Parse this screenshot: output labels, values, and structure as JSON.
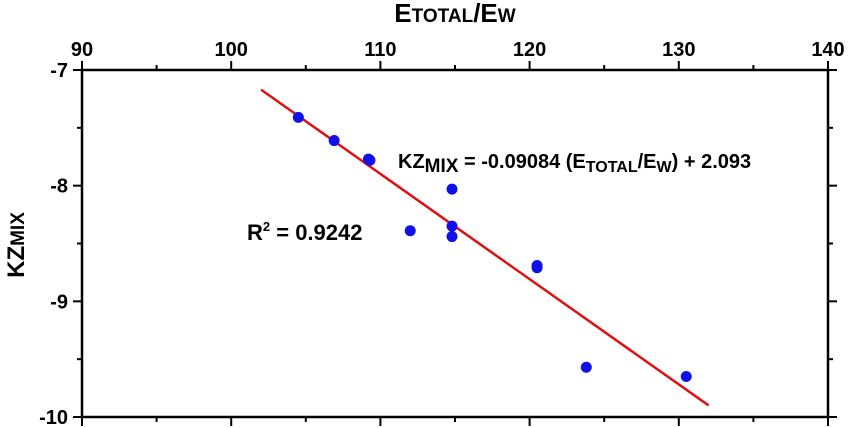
{
  "chart_data": {
    "type": "scatter",
    "xlabel": {
      "main": "E",
      "sub1": "TOTAL",
      "sep": "/E",
      "sub2": "W"
    },
    "ylabel": {
      "main": "KZ",
      "sub": "MIX"
    },
    "xlim": [
      90,
      140
    ],
    "ylim": [
      -10,
      -7
    ],
    "x_ticks": [
      90,
      100,
      110,
      120,
      130,
      140
    ],
    "x_tick_labels": [
      "90",
      "100",
      "110",
      "120",
      "130",
      "140"
    ],
    "y_ticks": [
      -7,
      -8,
      -9,
      -10
    ],
    "y_tick_labels": [
      "-7",
      "-8",
      "-9",
      "-10"
    ],
    "x_axis_position": "top",
    "grid": false,
    "marker_color": "#1010e8",
    "line_color": "#e01010",
    "points": [
      {
        "x": 104.5,
        "y": -7.41
      },
      {
        "x": 106.9,
        "y": -7.61
      },
      {
        "x": 109.2,
        "y": -7.77
      },
      {
        "x": 109.3,
        "y": -7.78
      },
      {
        "x": 112.0,
        "y": -8.39
      },
      {
        "x": 114.8,
        "y": -8.03
      },
      {
        "x": 114.8,
        "y": -8.35
      },
      {
        "x": 114.8,
        "y": -8.44
      },
      {
        "x": 120.5,
        "y": -8.69
      },
      {
        "x": 120.5,
        "y": -8.71
      },
      {
        "x": 123.8,
        "y": -9.57
      },
      {
        "x": 130.5,
        "y": -9.65
      }
    ],
    "fit_line": {
      "x": [
        102,
        132
      ],
      "y": [
        -7.17,
        -9.9
      ]
    },
    "annotations": {
      "equation": {
        "lhs_main": "KZ",
        "lhs_sub": "MIX",
        "mid": " = -0.09084 (E",
        "mid_sub1": "TOTAL",
        "sep": "/E",
        "mid_sub2": "W",
        "rhs": ") + 2.093"
      },
      "r2": {
        "main": "R",
        "sup": "2",
        "rhs": " = 0.9242"
      }
    }
  }
}
